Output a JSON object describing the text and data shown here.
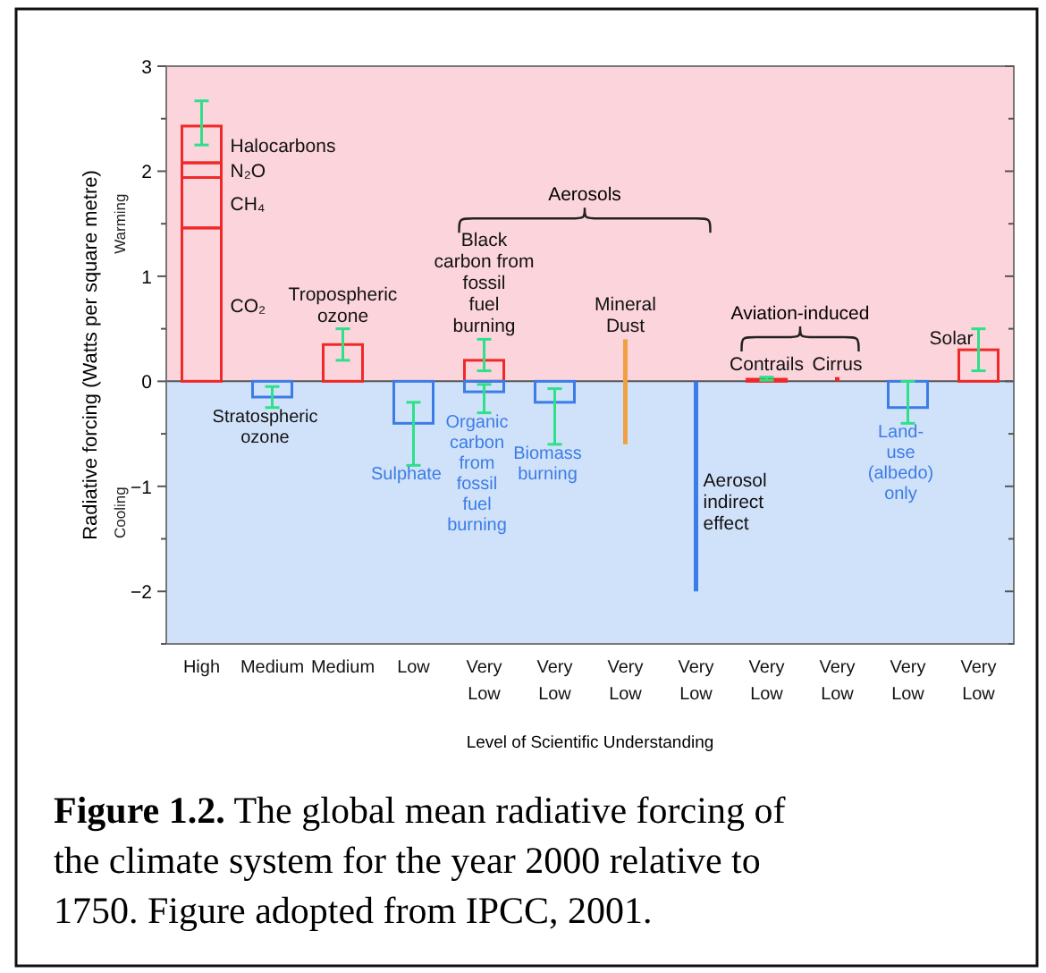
{
  "chart_data": {
    "type": "bar",
    "stacked": true,
    "ylabel": "Radiative forcing  (Watts per square metre)",
    "xlabel": "Level  of Scientific Understanding",
    "categories": [
      "High",
      "Medium",
      "Medium",
      "Low",
      "Very Low",
      "Very Low",
      "Very Low",
      "Very Low",
      "Very Low",
      "Very Low",
      "Very Low",
      "Very Low"
    ],
    "ylim": [
      -2.5,
      3
    ],
    "yticks": [
      {
        "value": -2.5,
        "label": null
      },
      -2,
      {
        "value": -1.5,
        "label": null
      },
      -1,
      {
        "value": -0.5,
        "label": null
      },
      0,
      {
        "value": 0.5,
        "label": null
      },
      1,
      {
        "value": 1.5,
        "label": null
      },
      2,
      {
        "value": 2.5,
        "label": null
      },
      3
    ],
    "bands": [
      {
        "axis": "y",
        "from": 0,
        "to": 3,
        "label": "Warming",
        "color": "#fcd4dc"
      },
      {
        "axis": "y",
        "from": -2.5,
        "to": 0,
        "label": "Cooling",
        "color": "#d0e2fa"
      }
    ],
    "series": [
      {
        "name": "CO₂",
        "color": "#f02828",
        "values": [
          1.46,
          null,
          null,
          null,
          null,
          null,
          null,
          null,
          null,
          null,
          null,
          null
        ]
      },
      {
        "name": "CH₄",
        "color": "#f02828",
        "values": [
          0.48,
          null,
          null,
          null,
          null,
          null,
          null,
          null,
          null,
          null,
          null,
          null
        ]
      },
      {
        "name": "N₂O",
        "color": "#f02828",
        "values": [
          0.14,
          null,
          null,
          null,
          null,
          null,
          null,
          null,
          null,
          null,
          null,
          null
        ]
      },
      {
        "name": "Halocarbons",
        "color": "#f02828",
        "values": [
          0.35,
          null,
          null,
          null,
          null,
          null,
          null,
          null,
          null,
          null,
          null,
          null
        ],
        "errors": [
          [
            2.25,
            2.67
          ],
          null,
          null,
          null,
          null,
          null,
          null,
          null,
          null,
          null,
          null,
          null
        ]
      },
      {
        "name": "Stratospheric\nozone",
        "color": "#3c7ce6",
        "values": [
          null,
          -0.15,
          null,
          null,
          null,
          null,
          null,
          null,
          null,
          null,
          null,
          null
        ],
        "errors": [
          null,
          [
            -0.25,
            -0.05
          ],
          null,
          null,
          null,
          null,
          null,
          null,
          null,
          null,
          null,
          null
        ]
      },
      {
        "name": "Tropospheric\nozone",
        "color": "#f02828",
        "values": [
          null,
          null,
          0.35,
          null,
          null,
          null,
          null,
          null,
          null,
          null,
          null,
          null
        ],
        "errors": [
          null,
          null,
          [
            0.2,
            0.5
          ],
          null,
          null,
          null,
          null,
          null,
          null,
          null,
          null,
          null
        ]
      },
      {
        "name": "Sulphate",
        "color": "#3c7ce6",
        "values": [
          null,
          null,
          null,
          -0.4,
          null,
          null,
          null,
          null,
          null,
          null,
          null,
          null
        ],
        "errors": [
          null,
          null,
          null,
          [
            -0.8,
            -0.2
          ],
          null,
          null,
          null,
          null,
          null,
          null,
          null,
          null
        ]
      },
      {
        "name": "Black\ncarbon from\nfossil\nfuel\nburning",
        "color": "#f02828",
        "values": [
          null,
          null,
          null,
          null,
          0.2,
          null,
          null,
          null,
          null,
          null,
          null,
          null
        ],
        "errors": [
          null,
          null,
          null,
          null,
          [
            0.1,
            0.4
          ],
          null,
          null,
          null,
          null,
          null,
          null,
          null
        ]
      },
      {
        "name": "Organic\ncarbon\nfrom\nfossil\nfuel\nburning",
        "color": "#3c7ce6",
        "values": [
          null,
          null,
          null,
          null,
          -0.1,
          null,
          null,
          null,
          null,
          null,
          null,
          null
        ],
        "errors": [
          null,
          null,
          null,
          null,
          [
            -0.3,
            -0.03
          ],
          null,
          null,
          null,
          null,
          null,
          null,
          null
        ]
      },
      {
        "name": "Biomass\nburning",
        "color": "#3c7ce6",
        "values": [
          null,
          null,
          null,
          null,
          null,
          -0.2,
          null,
          null,
          null,
          null,
          null,
          null
        ],
        "errors": [
          null,
          null,
          null,
          null,
          null,
          [
            -0.6,
            -0.07
          ],
          null,
          null,
          null,
          null,
          null,
          null
        ]
      },
      {
        "name": "Mineral\nDust",
        "color": "#f0a040",
        "base": [
          null,
          null,
          null,
          null,
          null,
          null,
          -0.6,
          null,
          null,
          null,
          null,
          null
        ],
        "values": [
          null,
          null,
          null,
          null,
          null,
          null,
          1.0,
          null,
          null,
          null,
          null,
          null
        ]
      },
      {
        "name": "Aerosol\nindirect\neffect",
        "color": "#3c7ce6",
        "base": [
          null,
          null,
          null,
          null,
          null,
          null,
          null,
          -2,
          null,
          null,
          null,
          null
        ],
        "values": [
          null,
          null,
          null,
          null,
          null,
          null,
          null,
          2,
          null,
          null,
          null,
          null
        ]
      },
      {
        "name": "Contrails",
        "color": "#f02828",
        "values": [
          null,
          null,
          null,
          null,
          null,
          null,
          null,
          null,
          0.02,
          null,
          null,
          null
        ],
        "errors": [
          null,
          null,
          null,
          null,
          null,
          null,
          null,
          null,
          [
            0.01,
            0.04
          ],
          null,
          null,
          null
        ]
      },
      {
        "name": "Cirrus",
        "color": "#f02828",
        "base": [
          null,
          null,
          null,
          null,
          null,
          null,
          null,
          null,
          null,
          0,
          null,
          null
        ],
        "values": [
          null,
          null,
          null,
          null,
          null,
          null,
          null,
          null,
          null,
          0.04,
          null,
          null
        ]
      },
      {
        "name": "Land-\nuse\n(albedo)\nonly",
        "color": "#3c7ce6",
        "values": [
          null,
          null,
          null,
          null,
          null,
          null,
          null,
          null,
          null,
          null,
          -0.25,
          null
        ],
        "errors": [
          null,
          null,
          null,
          null,
          null,
          null,
          null,
          null,
          null,
          null,
          [
            -0.4,
            0
          ],
          null
        ]
      },
      {
        "name": "Solar",
        "color": "#f02828",
        "values": [
          null,
          null,
          null,
          null,
          null,
          null,
          null,
          null,
          null,
          null,
          null,
          0.3
        ],
        "errors": [
          null,
          null,
          null,
          null,
          null,
          null,
          null,
          null,
          null,
          null,
          null,
          [
            0.1,
            0.5
          ]
        ]
      }
    ],
    "annotations": [
      "Aerosols",
      "Aviation-induced",
      "Figure 1.2. The global mean radiative forcing of the climate system for the year 2000 relative to 1750. Figure adopted from  IPCC, 2001."
    ]
  }
}
